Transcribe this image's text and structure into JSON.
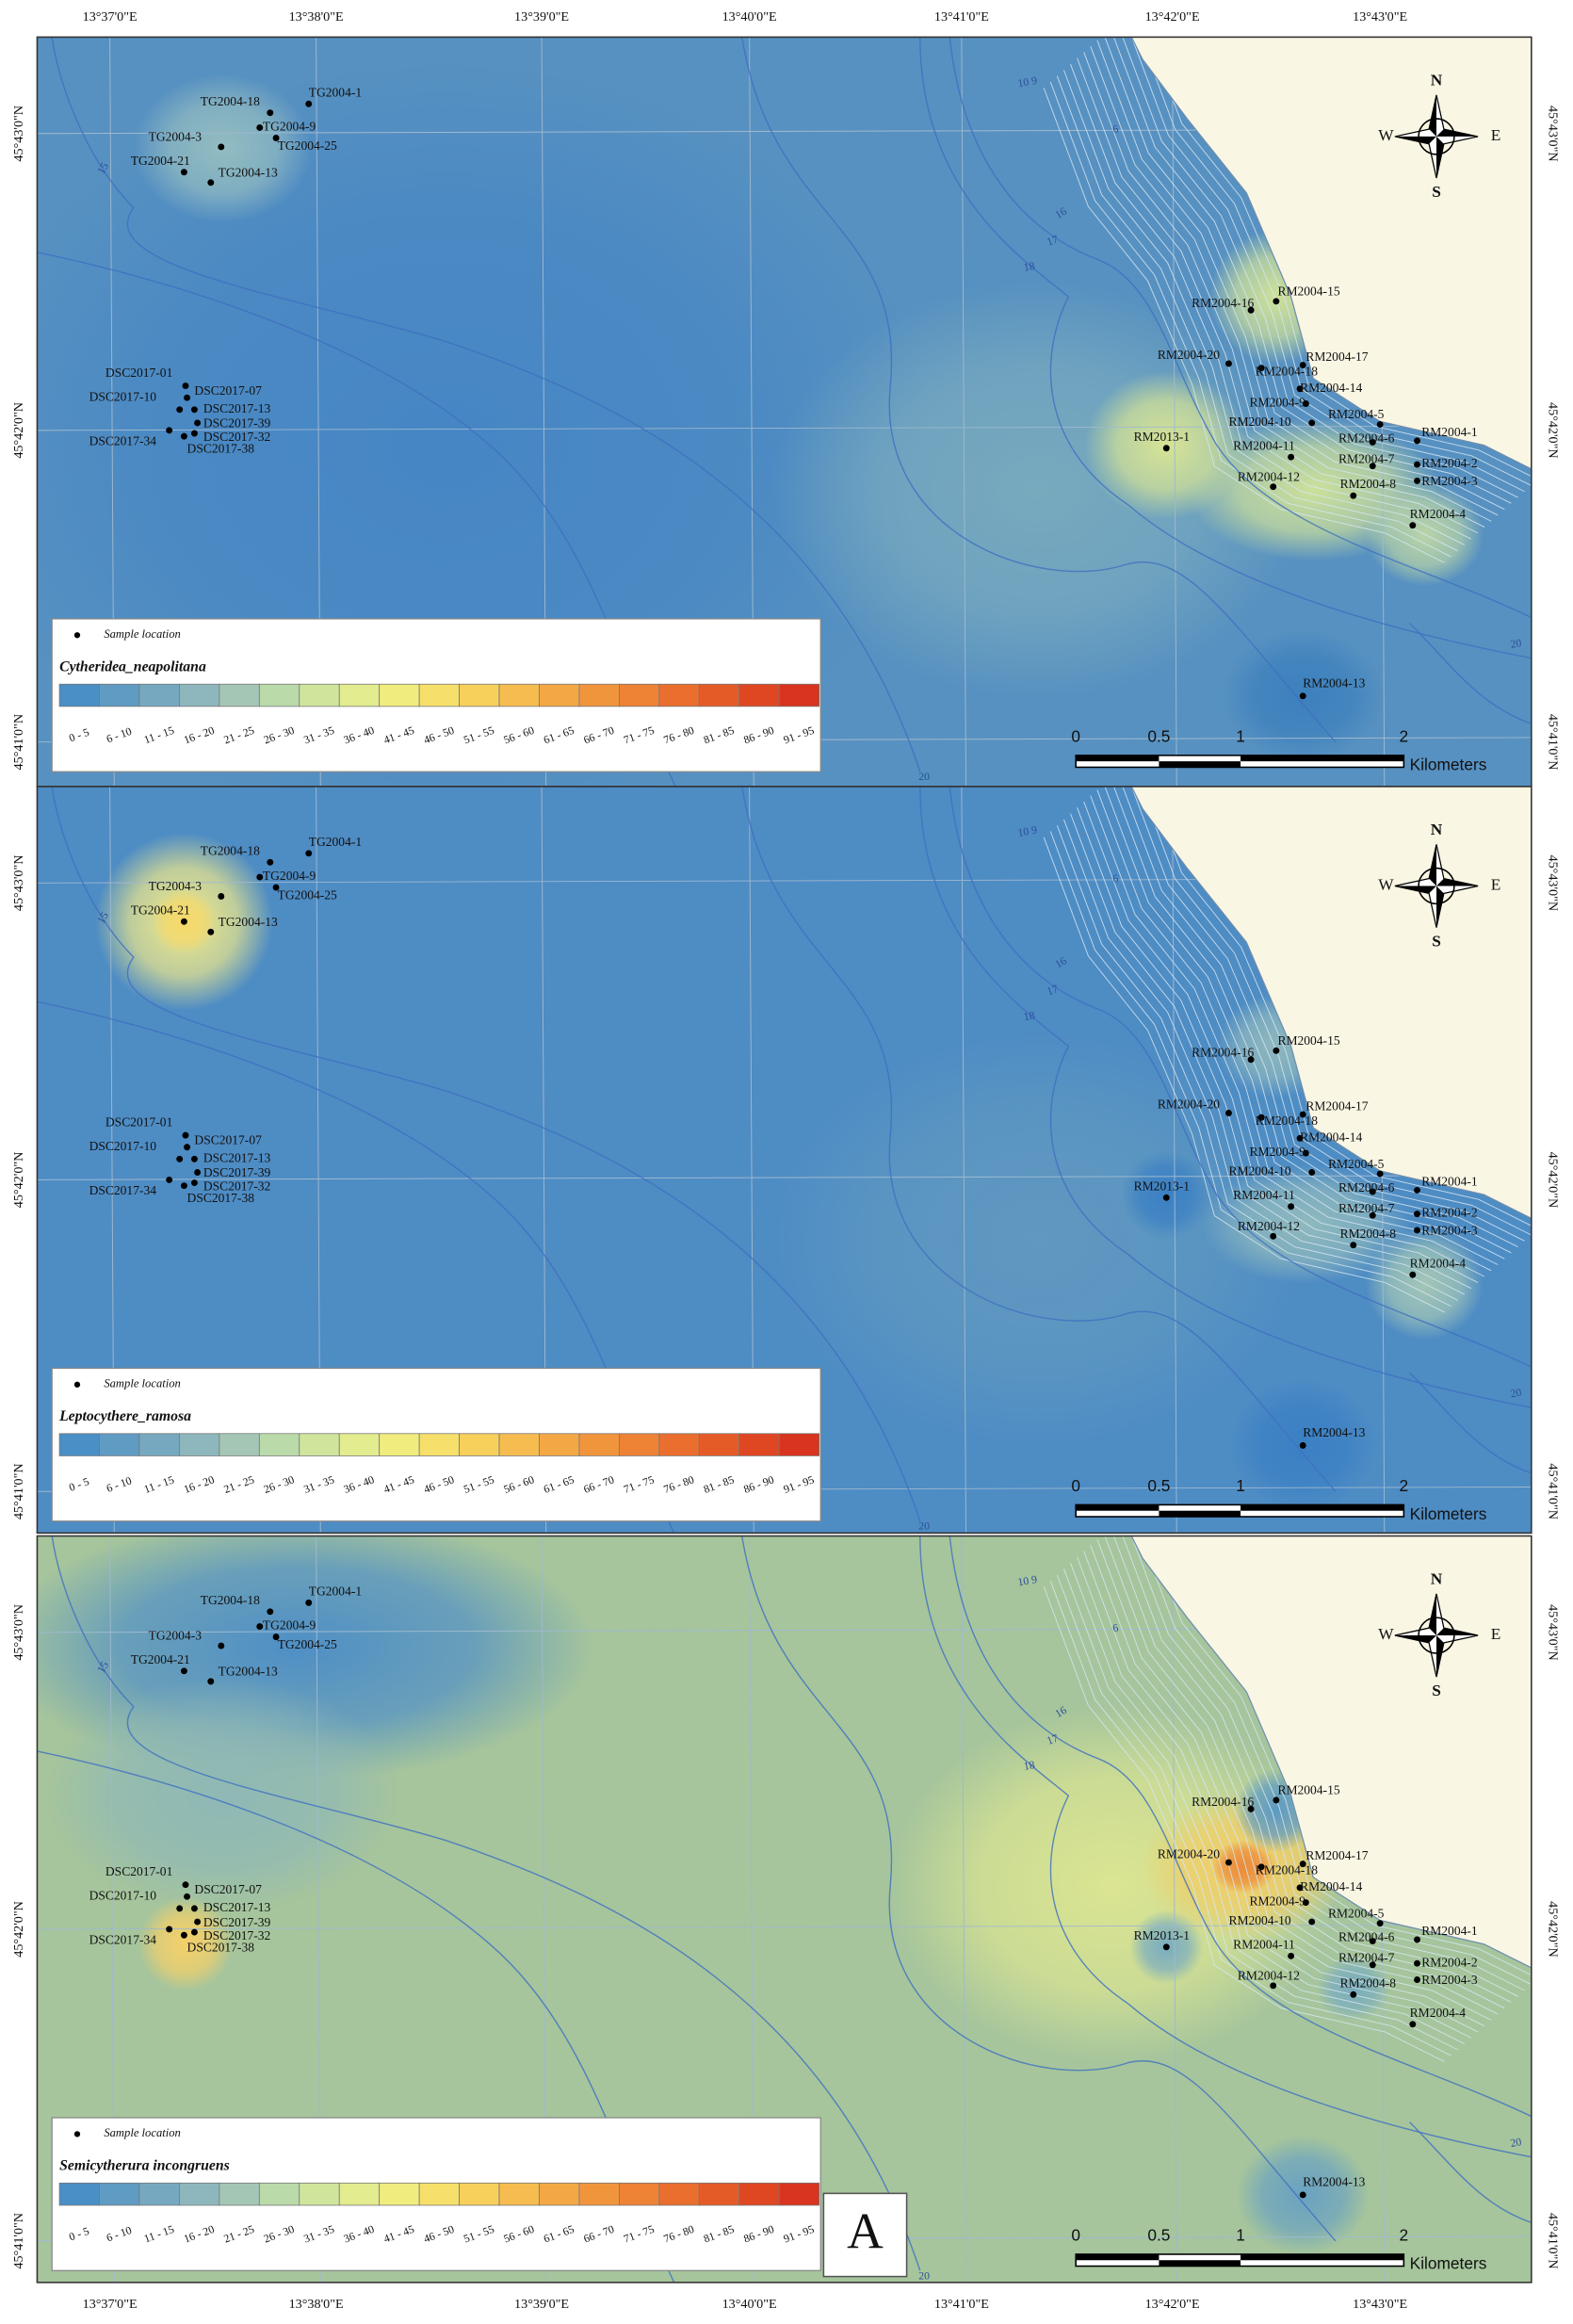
{
  "longitude_labels": [
    "13°37'0\"E",
    "13°38'0\"E",
    "13°39'0\"E",
    "13°40'0\"E",
    "13°41'0\"E",
    "13°42'0\"E",
    "13°43'0\"E"
  ],
  "latitude_labels": [
    "45°43'0\"N",
    "45°42'0\"N",
    "45°41'0\"N"
  ],
  "panels": [
    {
      "species": "Cytheridea_neapolitana"
    },
    {
      "species": "Leptocythere_ramosa"
    },
    {
      "species": "Semicytherura incongruens"
    }
  ],
  "stations": [
    "TG2004-1",
    "TG2004-18",
    "TG2004-9",
    "TG2004-3",
    "TG2004-25",
    "TG2004-21",
    "TG2004-13",
    "DSC2017-01",
    "DSC2017-07",
    "DSC2017-10",
    "DSC2017-13",
    "DSC2017-39",
    "DSC2017-32",
    "DSC2017-34",
    "DSC2017-38",
    "RM2004-15",
    "RM2004-16",
    "RM2004-20",
    "RM2004-17",
    "RM2004-18",
    "RM2004-14",
    "RM2004-9",
    "RM2004-5",
    "RM2004-10",
    "RM2004-1",
    "RM2004-6",
    "RM2013-1",
    "RM2004-11",
    "RM2004-7",
    "RM2004-2",
    "RM2004-12",
    "RM2004-8",
    "RM2004-3",
    "RM2004-4",
    "RM2004-13"
  ],
  "legend": {
    "marker_label": "Sample location",
    "classes": [
      {
        "label": "0 - 5",
        "color": "#4a8fc6"
      },
      {
        "label": "6 - 10",
        "color": "#5f9bc3"
      },
      {
        "label": "11 - 15",
        "color": "#76a9c0"
      },
      {
        "label": "16 - 20",
        "color": "#8db7bc"
      },
      {
        "label": "21 - 25",
        "color": "#a4c6b5"
      },
      {
        "label": "26 - 30",
        "color": "#badaa9"
      },
      {
        "label": "31 - 35",
        "color": "#d0e59c"
      },
      {
        "label": "36 - 40",
        "color": "#e3ec8e"
      },
      {
        "label": "41 - 45",
        "color": "#f1ec7e"
      },
      {
        "label": "46 - 50",
        "color": "#f6e06b"
      },
      {
        "label": "51 - 55",
        "color": "#f7cf5b"
      },
      {
        "label": "56 - 60",
        "color": "#f6bc4f"
      },
      {
        "label": "61 - 65",
        "color": "#f4a845"
      },
      {
        "label": "66 - 70",
        "color": "#f1953d"
      },
      {
        "label": "71 - 75",
        "color": "#ee8235"
      },
      {
        "label": "76 - 80",
        "color": "#ea6e2e"
      },
      {
        "label": "81 - 85",
        "color": "#e55b28"
      },
      {
        "label": "86 - 90",
        "color": "#df4723"
      },
      {
        "label": "91 - 95",
        "color": "#d8341f"
      }
    ]
  },
  "scale_bar": {
    "ticks": [
      "0",
      "0.5",
      "1",
      "2"
    ],
    "unit": "Kilometers"
  },
  "compass": {
    "north": "N",
    "south": "S",
    "west": "W",
    "east": "E"
  },
  "contour_labels": [
    "15",
    "10 9",
    "6",
    "16",
    "17",
    "18",
    "20",
    "20"
  ],
  "panel_label": "A"
}
